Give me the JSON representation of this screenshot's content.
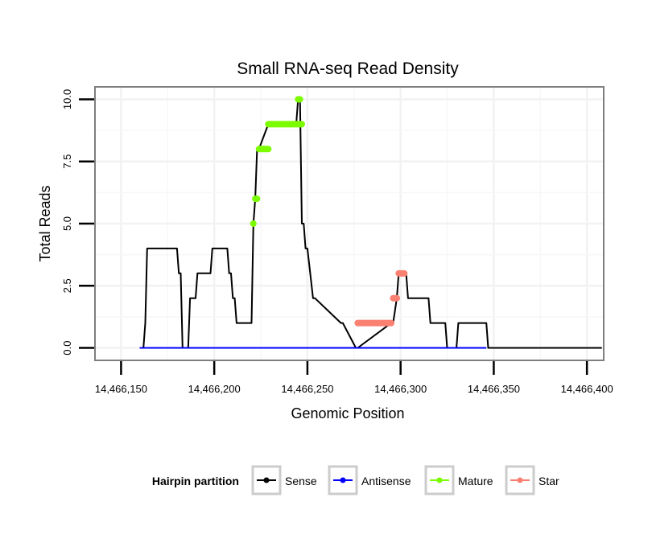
{
  "chart_data": {
    "type": "line",
    "title": "Small RNA-seq Read Density",
    "xlabel": "Genomic Position",
    "ylabel": "Total Reads",
    "xlim": [
      14466136,
      14466409
    ],
    "ylim": [
      -0.5,
      10.5
    ],
    "x_ticks": [
      14466150,
      14466200,
      14466250,
      14466300,
      14466350,
      14466400
    ],
    "x_tick_labels": [
      "14,466,150",
      "14,466,200",
      "14,466,250",
      "14,466,300",
      "14,466,350",
      "14,466,400"
    ],
    "y_ticks": [
      0,
      2.5,
      5,
      7.5,
      10
    ],
    "y_tick_labels": [
      "0.0",
      "2.5",
      "5.0",
      "7.5",
      "10.0"
    ],
    "grid": true,
    "legend": {
      "title": "Hairpin partition",
      "position": "bottom",
      "entries": [
        {
          "label": "Sense",
          "color": "#000000"
        },
        {
          "label": "Antisense",
          "color": "#0000ff"
        },
        {
          "label": "Mature",
          "color": "#7cfc00"
        },
        {
          "label": "Star",
          "color": "#fa8072"
        }
      ]
    },
    "series": [
      {
        "name": "Sense",
        "color": "#000000",
        "x": [
          14466160,
          14466162,
          14466163,
          14466164,
          14466180,
          14466181,
          14466182,
          14466183,
          14466186,
          14466187,
          14466190,
          14466191,
          14466198,
          14466199,
          14466207,
          14466208,
          14466209,
          14466210,
          14466211,
          14466212,
          14466214,
          14466220,
          14466221,
          14466222,
          14466223,
          14466224,
          14466229,
          14466244,
          14466245,
          14466246,
          14466247,
          14466248,
          14466249,
          14466250,
          14466253,
          14466254,
          14466268,
          14466269,
          14466276,
          14466277,
          14466295,
          14466296,
          14466298,
          14466299,
          14466303,
          14466304,
          14466315,
          14466316,
          14466324,
          14466325,
          14466330,
          14466331,
          14466346,
          14466347,
          14466408
        ],
        "y": [
          0,
          0,
          1,
          4,
          4,
          3,
          3,
          0,
          0,
          2,
          2,
          3,
          3,
          4,
          4,
          3,
          3,
          2,
          2,
          1,
          1,
          1,
          5,
          6,
          8,
          8,
          9,
          9,
          10,
          10,
          5,
          5,
          4,
          4,
          2,
          2,
          1,
          1,
          0,
          0,
          1,
          1,
          2,
          3,
          3,
          2,
          2,
          1,
          1,
          0,
          0,
          1,
          1,
          0,
          0
        ]
      },
      {
        "name": "Antisense",
        "color": "#0000ff",
        "x": [
          14466160,
          14466346
        ],
        "y": [
          0,
          0
        ]
      },
      {
        "name": "Mature",
        "color": "#7cfc00",
        "segments": [
          {
            "x": [
              14466221,
              14466221
            ],
            "y": 5
          },
          {
            "x": [
              14466222,
              14466223
            ],
            "y": 6
          },
          {
            "x": [
              14466224,
              14466229
            ],
            "y": 8
          },
          {
            "x": [
              14466229,
              14466247
            ],
            "y": 9
          },
          {
            "x": [
              14466245,
              14466246
            ],
            "y": 10
          }
        ]
      },
      {
        "name": "Star",
        "color": "#fa8072",
        "segments": [
          {
            "x": [
              14466277,
              14466295
            ],
            "y": 1
          },
          {
            "x": [
              14466296,
              14466298
            ],
            "y": 2
          },
          {
            "x": [
              14466299,
              14466302
            ],
            "y": 3
          }
        ]
      }
    ]
  }
}
